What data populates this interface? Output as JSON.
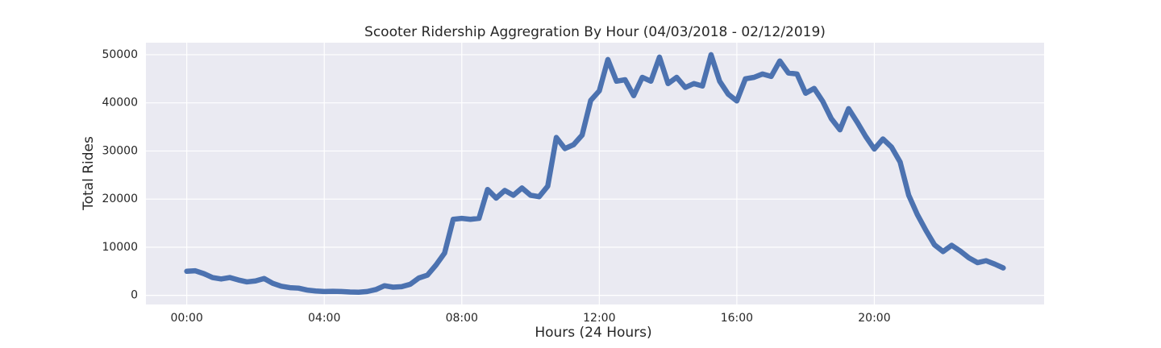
{
  "chart_data": {
    "type": "line",
    "title": "Scooter Ridership Aggregration By Hour (04/03/2018 - 02/12/2019)",
    "x_label": "Hours (24 Hours)",
    "y_label": "Total Rides",
    "x": [
      0,
      0.25,
      0.5,
      0.75,
      1,
      1.25,
      1.5,
      1.75,
      2,
      2.25,
      2.5,
      2.75,
      3,
      3.25,
      3.5,
      3.75,
      4,
      4.25,
      4.5,
      4.75,
      5,
      5.25,
      5.5,
      5.75,
      6,
      6.25,
      6.5,
      6.75,
      7,
      7.25,
      7.5,
      7.75,
      8,
      8.25,
      8.5,
      8.75,
      9,
      9.25,
      9.5,
      9.75,
      10,
      10.25,
      10.5,
      10.75,
      11,
      11.25,
      11.5,
      11.75,
      12,
      12.25,
      12.5,
      12.75,
      13,
      13.25,
      13.5,
      13.75,
      14,
      14.25,
      14.5,
      14.75,
      15,
      15.25,
      15.5,
      15.75,
      16,
      16.25,
      16.5,
      16.75,
      17,
      17.25,
      17.5,
      17.75,
      18,
      18.25,
      18.5,
      18.75,
      19,
      19.25,
      19.5,
      19.75,
      20,
      20.25,
      20.5,
      20.75,
      21,
      21.25,
      21.5,
      21.75,
      22,
      22.25,
      22.5,
      22.75,
      23,
      23.25,
      23.5,
      23.75
    ],
    "values": [
      5000,
      5100,
      4500,
      3700,
      3400,
      3700,
      3200,
      2800,
      3000,
      3500,
      2500,
      1900,
      1600,
      1500,
      1100,
      900,
      800,
      850,
      800,
      700,
      650,
      800,
      1200,
      2000,
      1700,
      1800,
      2300,
      3600,
      4200,
      6300,
      8800,
      15800,
      16000,
      15800,
      16000,
      22000,
      20200,
      21800,
      20800,
      22300,
      20800,
      20500,
      22700,
      32800,
      30500,
      31300,
      33300,
      40500,
      42500,
      49000,
      44500,
      44800,
      41500,
      45300,
      44500,
      49500,
      44000,
      45300,
      43200,
      44000,
      43500,
      50000,
      44500,
      41800,
      40400,
      45000,
      45300,
      46000,
      45500,
      48700,
      46200,
      46000,
      42000,
      43000,
      40300,
      36700,
      34400,
      38800,
      36000,
      33000,
      30400,
      32500,
      30800,
      27700,
      20800,
      16800,
      13500,
      10500,
      9100,
      10400,
      9200,
      7800,
      6800,
      7200,
      6500,
      5700
    ],
    "color": "#4c72b0",
    "xlim": [
      -1.1875,
      24.9375
    ],
    "xticks": [
      {
        "value": 0,
        "label": "00:00"
      },
      {
        "value": 4,
        "label": "04:00"
      },
      {
        "value": 8,
        "label": "08:00"
      },
      {
        "value": 12,
        "label": "12:00"
      },
      {
        "value": 16,
        "label": "16:00"
      },
      {
        "value": 20,
        "label": "20:00"
      }
    ],
    "ylim": [
      -1900,
      52500
    ],
    "yticks": [
      0,
      10000,
      20000,
      30000,
      40000,
      50000
    ],
    "grid": true
  }
}
